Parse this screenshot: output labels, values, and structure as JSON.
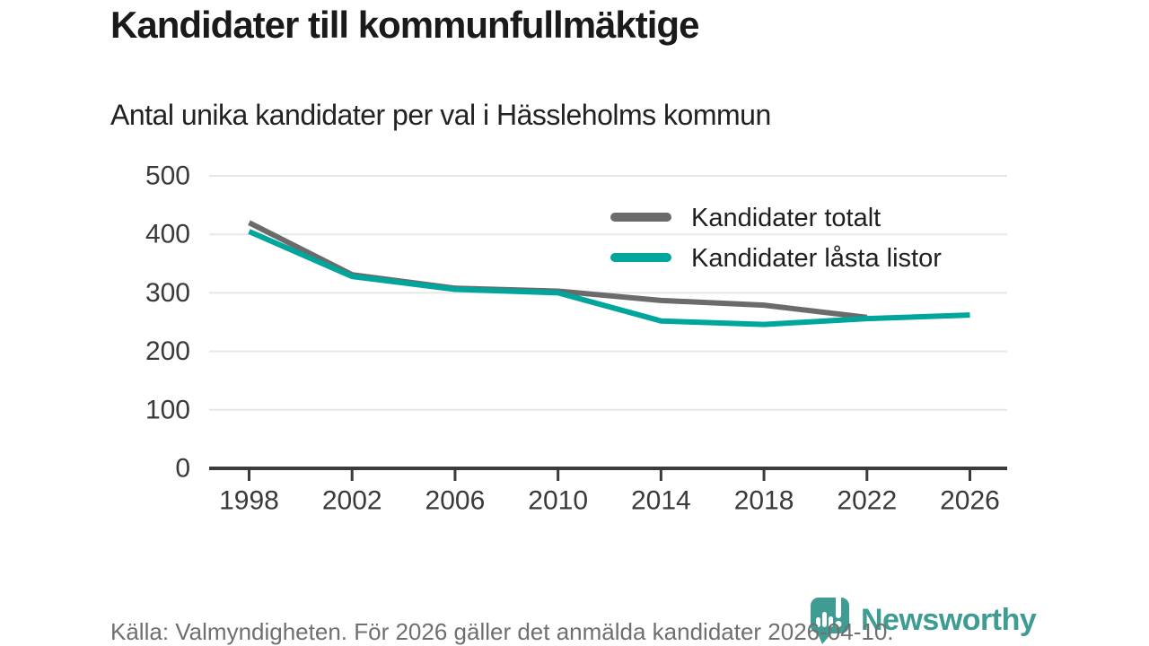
{
  "chart_data": {
    "type": "line",
    "title": "Kandidater till kommunfullmäktige",
    "subtitle": "Antal unika kandidater per val i Hässleholms kommun",
    "x": [
      1998,
      2002,
      2006,
      2010,
      2014,
      2018,
      2022,
      2026
    ],
    "series": [
      {
        "name": "Kandidater totalt",
        "color": "#6b6b6b",
        "values": [
          420,
          331,
          308,
          303,
          287,
          279,
          258,
          null
        ]
      },
      {
        "name": "Kandidater låsta listor",
        "color": "#00a69b",
        "values": [
          405,
          328,
          306,
          300,
          252,
          246,
          256,
          262
        ]
      }
    ],
    "xlabel": "",
    "ylabel": "",
    "ylim": [
      0,
      500
    ],
    "yticks": [
      0,
      100,
      200,
      300,
      400,
      500
    ],
    "grid": "horizontal",
    "legend_position": "top-right"
  },
  "footer": {
    "source": "Källa: Valmyndigheten. För 2026 gäller det anmälda kandidater 2026-04-10.",
    "brand": "Newsworthy"
  },
  "colors": {
    "accent_teal": "#00a69b",
    "series_gray": "#6b6b6b",
    "logo_teal": "#3f9c92",
    "grid": "#e7e7e7",
    "axis": "#3b3b3b",
    "tick_text": "#3a3a3a",
    "legend_text": "#1f1f1f",
    "title_text": "#1a1a1a",
    "muted_text": "#6f6f6f"
  }
}
